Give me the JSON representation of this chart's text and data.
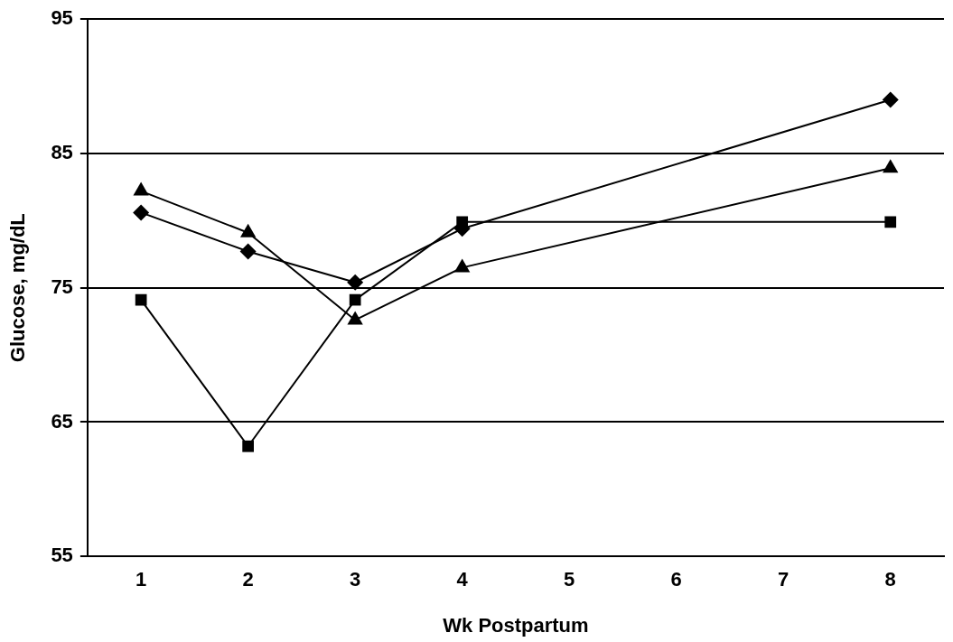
{
  "chart_data": {
    "type": "line",
    "xlabel": "Wk Postpartum",
    "ylabel": "Glucose, mg/dL",
    "categories": [
      "1",
      "2",
      "3",
      "4",
      "5",
      "6",
      "7",
      "8"
    ],
    "series": [
      {
        "color": "#000000",
        "marker": "diamond",
        "values": [
          80.6,
          77.7,
          75.4,
          79.4,
          null,
          null,
          null,
          89.0
        ]
      },
      {
        "color": "#000000",
        "marker": "square",
        "values": [
          74.1,
          63.2,
          74.1,
          79.9,
          null,
          null,
          null,
          79.9
        ]
      },
      {
        "color": "#000000",
        "marker": "triangle",
        "values": [
          82.2,
          79.1,
          72.6,
          76.5,
          null,
          null,
          null,
          83.9
        ]
      }
    ],
    "ylim": [
      55,
      95
    ],
    "yticks": [
      55,
      65,
      75,
      85,
      95
    ],
    "grid": "y",
    "legend": false
  }
}
